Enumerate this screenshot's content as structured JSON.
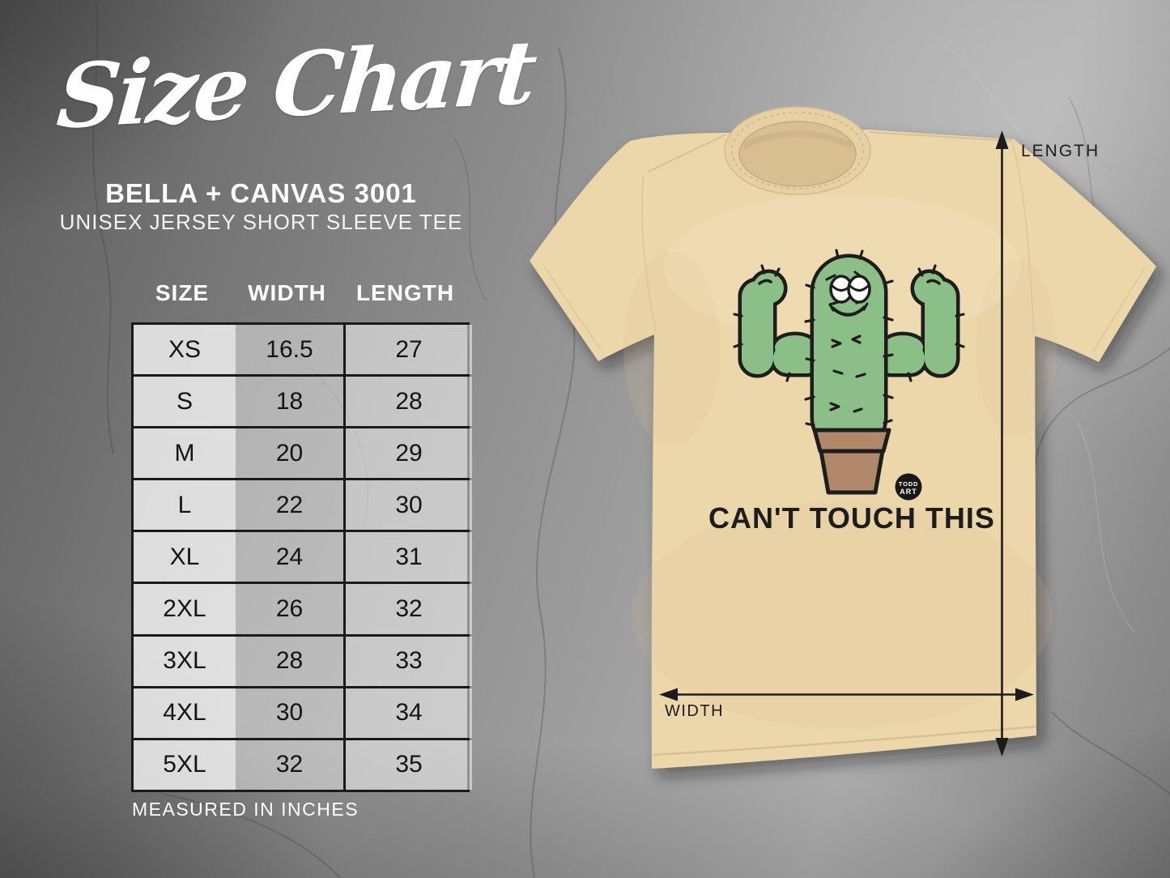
{
  "title": "Size Chart",
  "brand_line": "BELLA + CANVAS 3001",
  "product_line": "UNISEX JERSEY SHORT SLEEVE TEE",
  "footnote": "MEASURED IN INCHES",
  "size_table": {
    "columns": [
      "SIZE",
      "WIDTH",
      "LENGTH"
    ],
    "rows": [
      [
        "XS",
        "16.5",
        "27"
      ],
      [
        "S",
        "18",
        "28"
      ],
      [
        "M",
        "20",
        "29"
      ],
      [
        "L",
        "22",
        "30"
      ],
      [
        "XL",
        "24",
        "31"
      ],
      [
        "2XL",
        "26",
        "32"
      ],
      [
        "3XL",
        "28",
        "33"
      ],
      [
        "4XL",
        "30",
        "34"
      ],
      [
        "5XL",
        "32",
        "35"
      ]
    ],
    "units": "inches"
  },
  "mockup": {
    "design_text": "CAN'T TOUCH THIS",
    "badge": {
      "top": "TODD",
      "bottom": "ART"
    },
    "length_label": "LENGTH",
    "width_label": "WIDTH",
    "design_subject": "flexing cactus in a pot"
  },
  "colors": {
    "shirt_tan": "#ecd7ab",
    "cactus_green": "#8cbf88",
    "pot_brown": "#b1886a",
    "ink_black": "#1d1d1d",
    "text_white": "#ffffff",
    "background_gray": "#8e8e8e"
  }
}
